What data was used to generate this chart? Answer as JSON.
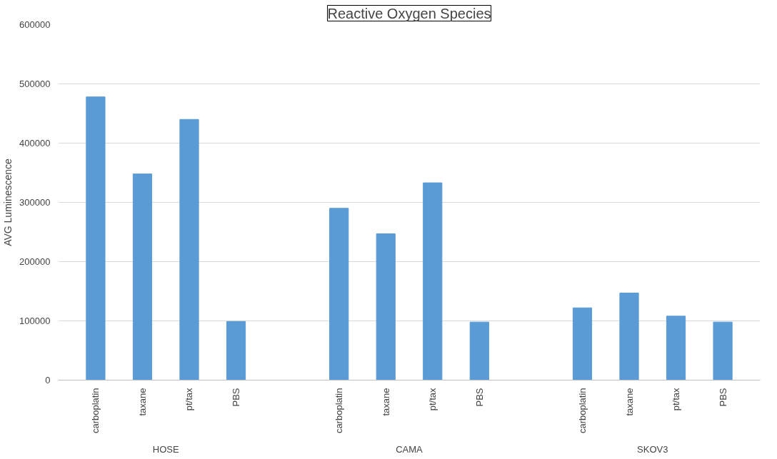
{
  "chart_data": {
    "type": "bar",
    "title": "Reactive Oxygen Species",
    "ylabel": "AVG Luminescence",
    "categories": [
      "carboplatin",
      "taxane",
      "pt/tax",
      "PBS",
      "carboplatin",
      "taxane",
      "pt/tax",
      "PBS",
      "carboplatin",
      "taxane",
      "pt/tax",
      "PBS"
    ],
    "annotations": [
      "HOSE",
      "CAMA",
      "SKOV3"
    ],
    "values": [
      478000,
      348000,
      440000,
      99000,
      290000,
      247000,
      333000,
      98000,
      122000,
      147000,
      108000,
      98000
    ],
    "color": "#5b9bd5",
    "ylim": [
      0,
      600000
    ],
    "yticks": [
      0,
      100000,
      200000,
      300000,
      400000,
      500000,
      600000
    ],
    "grid": "y"
  }
}
